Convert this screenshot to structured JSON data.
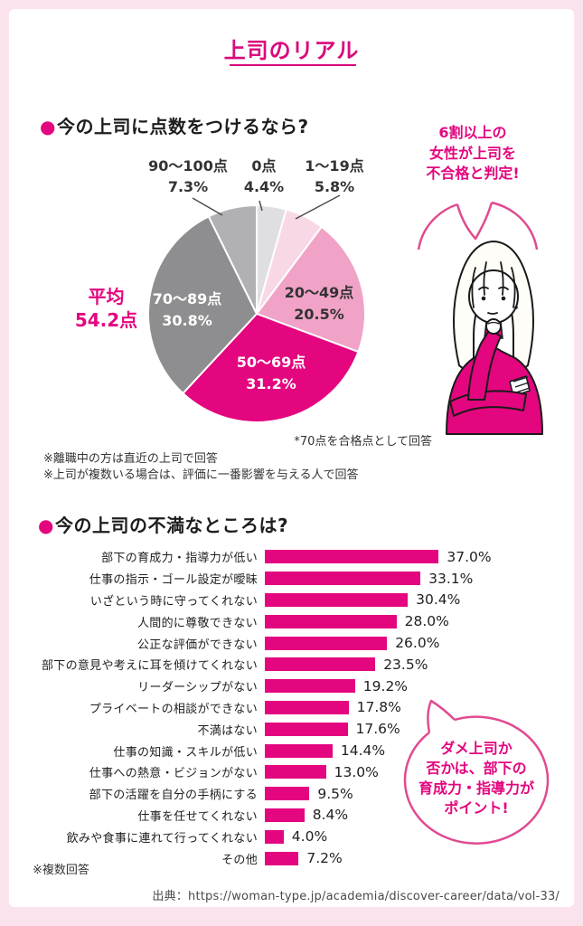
{
  "page": {
    "title": "上司のリアル",
    "source": "出典：https://woman-type.jp/academia/discover-career/data/vol-33/"
  },
  "pie_section": {
    "bullet": "●",
    "heading": "今の上司に点数をつけるなら?",
    "bubble": "6割以上の\n女性が上司を\n不合格と判定!",
    "average_label": "平均",
    "average_value": "54.2点",
    "footnote": "*70点を合格点として回答",
    "notes": "※離職中の方は直近の上司で回答\n※上司が複数いる場合は、評価に一番影響を与える人で回答"
  },
  "bar_section": {
    "bullet": "●",
    "heading": "今の上司の不満なところは?",
    "note": "※複数回答",
    "bubble": "ダメ上司か\n否かは、部下の\n育成力・指導力が\nポイント!"
  },
  "chart_data": [
    {
      "type": "pie",
      "title": "今の上司に点数をつけるなら?",
      "unit": "%",
      "start_angle": "top",
      "direction": "clockwise",
      "average": "54.2点",
      "slices": [
        {
          "label": "0点",
          "value": 4.4,
          "display": "4.4%",
          "color": "#dfdfe1",
          "label_pos": "outside"
        },
        {
          "label": "1〜19点",
          "value": 5.8,
          "display": "5.8%",
          "color": "#f8d8e6",
          "label_pos": "outside"
        },
        {
          "label": "20〜49点",
          "value": 20.5,
          "display": "20.5%",
          "color": "#f0a3c6",
          "label_pos": "inside"
        },
        {
          "label": "50〜69点",
          "value": 31.2,
          "display": "31.2%",
          "color": "#e3067f",
          "label_pos": "inside"
        },
        {
          "label": "70〜89点",
          "value": 30.8,
          "display": "30.8%",
          "color": "#8e8e90",
          "label_pos": "inside"
        },
        {
          "label": "90〜100点",
          "value": 7.3,
          "display": "7.3%",
          "color": "#b1b1b3",
          "label_pos": "outside"
        }
      ]
    },
    {
      "type": "bar",
      "orientation": "horizontal",
      "title": "今の上司の不満なところは?",
      "unit": "%",
      "bar_color": "#e3067f",
      "categories": [
        "部下の育成力・指導力が低い",
        "仕事の指示・ゴール設定が曖昧",
        "いざという時に守ってくれない",
        "人間的に尊敬できない",
        "公正な評価ができない",
        "部下の意見や考えに耳を傾けてくれない",
        "リーダーシップがない",
        "プライベートの相談ができない",
        "不満はない",
        "仕事の知識・スキルが低い",
        "仕事への熱意・ビジョンがない",
        "部下の活躍を自分の手柄にする",
        "仕事を任せてくれない",
        "飲みや食事に連れて行ってくれない",
        "その他"
      ],
      "values": [
        37.0,
        33.1,
        30.4,
        28.0,
        26.0,
        23.5,
        19.2,
        17.8,
        17.6,
        14.4,
        13.0,
        9.5,
        8.4,
        4.0,
        7.2
      ]
    }
  ]
}
